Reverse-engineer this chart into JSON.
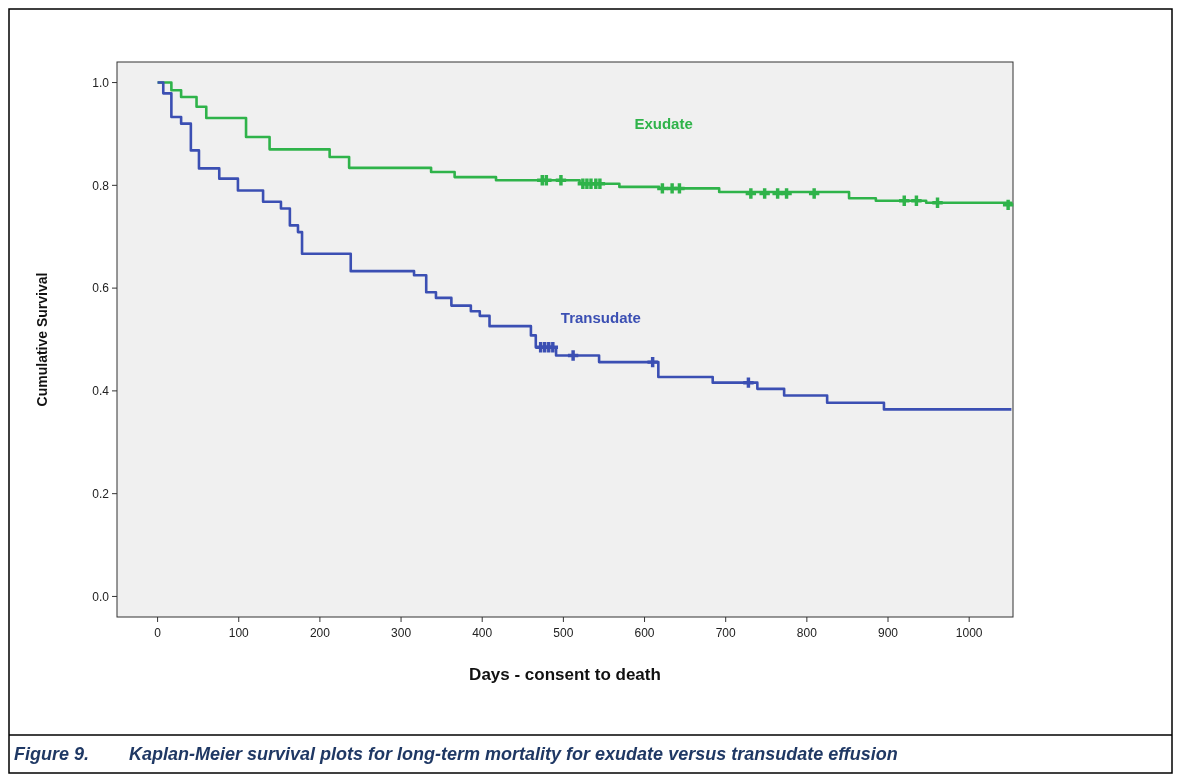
{
  "chart_data": {
    "type": "step",
    "xlabel": "Days - consent to death",
    "ylabel": "Cumulative Survival",
    "xlim": [
      -50,
      1054
    ],
    "ylim": [
      -0.04,
      1.04
    ],
    "xticks": [
      0,
      100,
      200,
      300,
      400,
      500,
      600,
      700,
      800,
      900,
      1000
    ],
    "yticks": [
      {
        "value": 0,
        "label": "0.0"
      },
      {
        "value": 0.2,
        "label": "0.2"
      },
      {
        "value": 0.4,
        "label": "0.4"
      },
      {
        "value": 0.6,
        "label": "0.6"
      },
      {
        "value": 0.8,
        "label": "0.8"
      },
      {
        "value": 1,
        "label": "1.0"
      }
    ],
    "grid": false,
    "legend": false,
    "line_style": "solid",
    "series": [
      {
        "name": "Exudate",
        "color": "#2fb34a",
        "x": [
          0,
          17,
          29,
          48,
          60,
          109,
          138,
          212,
          236,
          337,
          366,
          417,
          520,
          569,
          618,
          692,
          852,
          885,
          947,
          1052
        ],
        "values": [
          1.0,
          0.985,
          0.972,
          0.953,
          0.931,
          0.894,
          0.87,
          0.855,
          0.834,
          0.826,
          0.816,
          0.81,
          0.803,
          0.797,
          0.794,
          0.787,
          0.775,
          0.77,
          0.766,
          0.762
        ]
      },
      {
        "name": "Transudate",
        "color": "#3b4fb3",
        "x": [
          0,
          7,
          17,
          29,
          41,
          51,
          76,
          99,
          130,
          152,
          163,
          173,
          178,
          238,
          316,
          331,
          343,
          362,
          386,
          397,
          409,
          460,
          466,
          491,
          544,
          617,
          684,
          739,
          772,
          825,
          895,
          1052
        ],
        "values": [
          1.0,
          0.979,
          0.933,
          0.92,
          0.868,
          0.833,
          0.813,
          0.79,
          0.768,
          0.755,
          0.722,
          0.709,
          0.667,
          0.633,
          0.625,
          0.592,
          0.581,
          0.566,
          0.555,
          0.546,
          0.526,
          0.508,
          0.485,
          0.469,
          0.456,
          0.427,
          0.416,
          0.404,
          0.391,
          0.377,
          0.364,
          0.364
        ]
      },
      {
        "type": "scatter",
        "marker": "cross",
        "color": "#2fb34a",
        "x": [
          474,
          479,
          497,
          524,
          529,
          534,
          540,
          545,
          622,
          634,
          643,
          731,
          748,
          764,
          775,
          809,
          920,
          935,
          961,
          1048
        ],
        "values": [
          0.81,
          0.81,
          0.81,
          0.803,
          0.803,
          0.803,
          0.803,
          0.803,
          0.794,
          0.794,
          0.794,
          0.784,
          0.784,
          0.784,
          0.784,
          0.784,
          0.77,
          0.77,
          0.766,
          0.762
        ]
      },
      {
        "type": "scatter",
        "marker": "cross",
        "color": "#3b4fb3",
        "x": [
          472,
          477,
          482,
          487,
          512,
          610,
          728
        ],
        "values": [
          0.485,
          0.485,
          0.485,
          0.485,
          0.469,
          0.456,
          0.416
        ]
      }
    ],
    "annotations": [
      "Figure 9.        Kaplan-Meier survival plots for long-term mortality for exudate versus transudate effusion"
    ]
  }
}
